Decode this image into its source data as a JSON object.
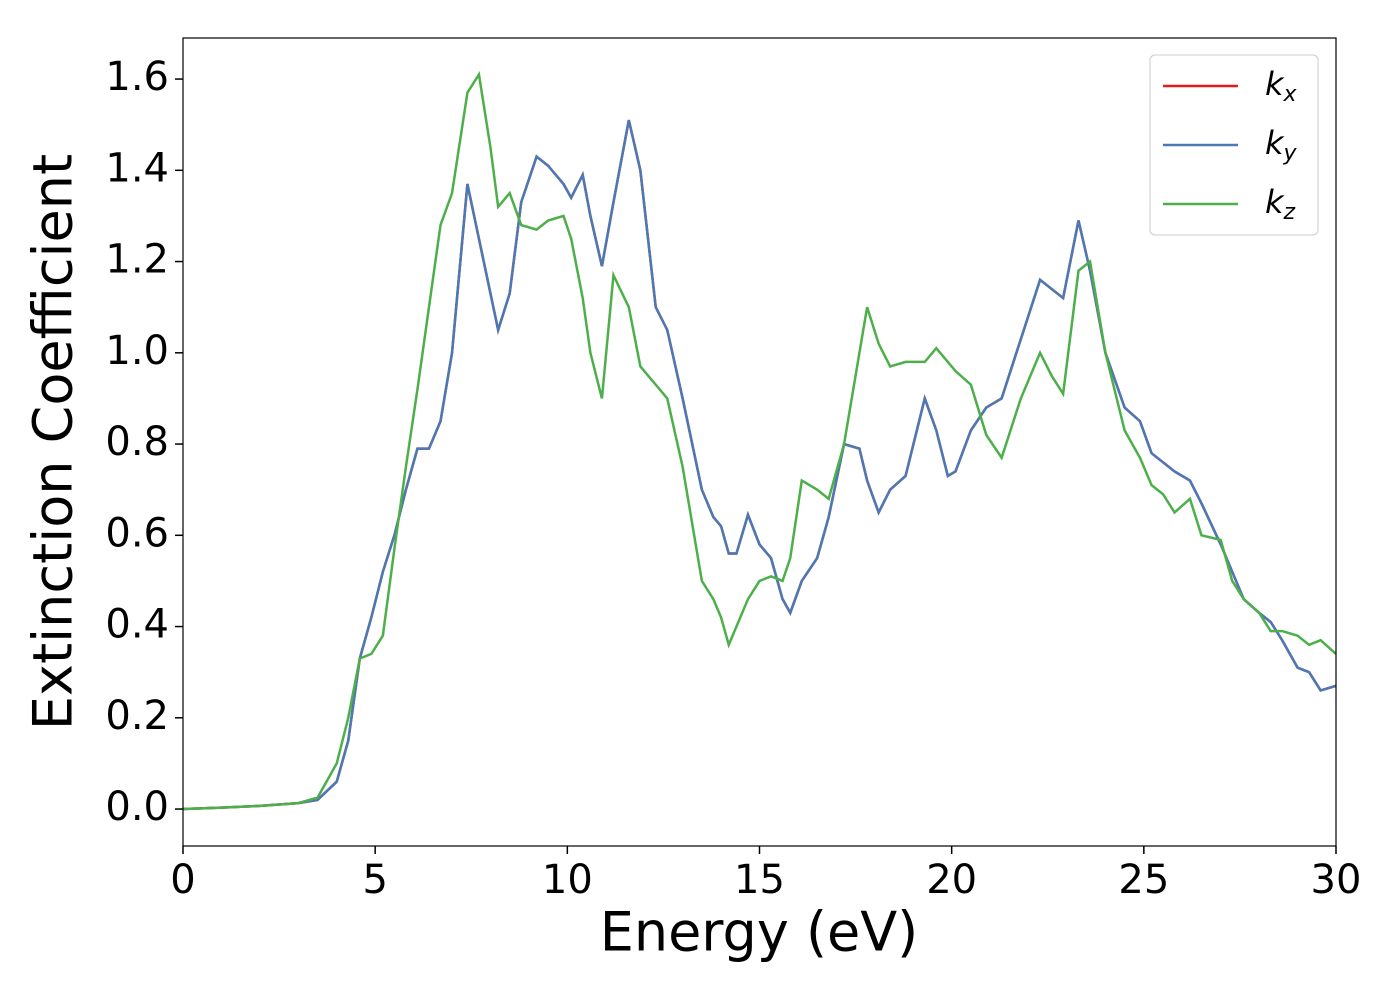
{
  "chart_data": {
    "type": "line",
    "xlabel": "Energy (eV)",
    "ylabel": "Extinction Coefficient",
    "xlim": [
      0,
      30
    ],
    "ylim": [
      -0.081,
      1.69
    ],
    "xticks": [
      0,
      5,
      10,
      15,
      20,
      25,
      30
    ],
    "yticks": [
      {
        "value": 0,
        "label": "0.0"
      },
      0.2,
      0.4,
      0.6,
      0.8,
      {
        "value": 1,
        "label": "1.0"
      },
      1.2,
      1.4,
      1.6
    ],
    "legend": "upper right",
    "x": [
      0,
      1,
      2,
      3,
      3.5,
      4,
      4.3,
      4.6,
      4.9,
      5.2,
      5.5,
      5.8,
      6.1,
      6.4,
      6.7,
      7.0,
      7.4,
      7.7,
      8.0,
      8.2,
      8.5,
      8.8,
      9.2,
      9.5,
      9.9,
      10.1,
      10.4,
      10.6,
      10.9,
      11.2,
      11.6,
      11.9,
      12.3,
      12.6,
      13.0,
      13.5,
      13.8,
      14.0,
      14.2,
      14.4,
      14.7,
      15.0,
      15.3,
      15.6,
      15.8,
      16.1,
      16.5,
      16.8,
      17.2,
      17.6,
      17.8,
      18.1,
      18.4,
      18.8,
      19.3,
      19.6,
      19.9,
      20.1,
      20.5,
      20.9,
      21.3,
      21.8,
      22.3,
      22.6,
      22.9,
      23.3,
      23.6,
      24.0,
      24.5,
      24.9,
      25.2,
      25.5,
      25.8,
      26.2,
      26.5,
      27.0,
      27.3,
      27.6,
      28.0,
      28.3,
      28.6,
      29.0,
      29.3,
      29.6,
      30
    ],
    "series": [
      {
        "name": "kx",
        "color": "#e41a1c",
        "values": [
          0,
          0.003,
          0.007,
          0.013,
          0.02,
          0.06,
          0.15,
          0.33,
          0.42,
          0.52,
          0.6,
          0.7,
          0.79,
          0.79,
          0.85,
          1.0,
          1.37,
          1.25,
          1.13,
          1.05,
          1.13,
          1.33,
          1.43,
          1.41,
          1.37,
          1.34,
          1.39,
          1.3,
          1.19,
          1.33,
          1.51,
          1.4,
          1.1,
          1.05,
          0.9,
          0.7,
          0.64,
          0.62,
          0.56,
          0.56,
          0.645,
          0.58,
          0.55,
          0.46,
          0.43,
          0.5,
          0.55,
          0.64,
          0.8,
          0.79,
          0.72,
          0.65,
          0.7,
          0.73,
          0.9,
          0.83,
          0.73,
          0.74,
          0.83,
          0.88,
          0.9,
          1.03,
          1.16,
          1.14,
          1.12,
          1.29,
          1.18,
          1.0,
          0.88,
          0.85,
          0.78,
          0.76,
          0.74,
          0.72,
          0.67,
          0.58,
          0.52,
          0.46,
          0.43,
          0.41,
          0.37,
          0.31,
          0.3,
          0.26,
          0.27
        ]
      },
      {
        "name": "ky",
        "color": "#4a7ab5",
        "values": [
          0,
          0.003,
          0.007,
          0.013,
          0.02,
          0.06,
          0.15,
          0.33,
          0.42,
          0.52,
          0.6,
          0.7,
          0.79,
          0.79,
          0.85,
          1.0,
          1.37,
          1.25,
          1.13,
          1.05,
          1.13,
          1.33,
          1.43,
          1.41,
          1.37,
          1.34,
          1.39,
          1.3,
          1.19,
          1.33,
          1.51,
          1.4,
          1.1,
          1.05,
          0.9,
          0.7,
          0.64,
          0.62,
          0.56,
          0.56,
          0.645,
          0.58,
          0.55,
          0.46,
          0.43,
          0.5,
          0.55,
          0.64,
          0.8,
          0.79,
          0.72,
          0.65,
          0.7,
          0.73,
          0.9,
          0.83,
          0.73,
          0.74,
          0.83,
          0.88,
          0.9,
          1.03,
          1.16,
          1.14,
          1.12,
          1.29,
          1.18,
          1.0,
          0.88,
          0.85,
          0.78,
          0.76,
          0.74,
          0.72,
          0.67,
          0.58,
          0.52,
          0.46,
          0.43,
          0.41,
          0.37,
          0.31,
          0.3,
          0.26,
          0.27
        ]
      },
      {
        "name": "kz",
        "color": "#4daf4a",
        "values": [
          0,
          0.003,
          0.007,
          0.013,
          0.025,
          0.1,
          0.2,
          0.33,
          0.34,
          0.38,
          0.57,
          0.75,
          0.92,
          1.1,
          1.28,
          1.35,
          1.57,
          1.61,
          1.45,
          1.32,
          1.35,
          1.28,
          1.27,
          1.29,
          1.3,
          1.25,
          1.12,
          1.0,
          0.9,
          1.17,
          1.1,
          0.97,
          0.93,
          0.9,
          0.75,
          0.5,
          0.46,
          0.42,
          0.36,
          0.4,
          0.46,
          0.5,
          0.51,
          0.5,
          0.55,
          0.72,
          0.7,
          0.68,
          0.8,
          1.0,
          1.1,
          1.02,
          0.97,
          0.98,
          0.98,
          1.01,
          0.98,
          0.96,
          0.93,
          0.82,
          0.77,
          0.9,
          1.0,
          0.95,
          0.91,
          1.18,
          1.2,
          1.0,
          0.83,
          0.77,
          0.71,
          0.69,
          0.65,
          0.68,
          0.6,
          0.59,
          0.5,
          0.46,
          0.43,
          0.39,
          0.39,
          0.38,
          0.36,
          0.37,
          0.34
        ]
      }
    ]
  }
}
